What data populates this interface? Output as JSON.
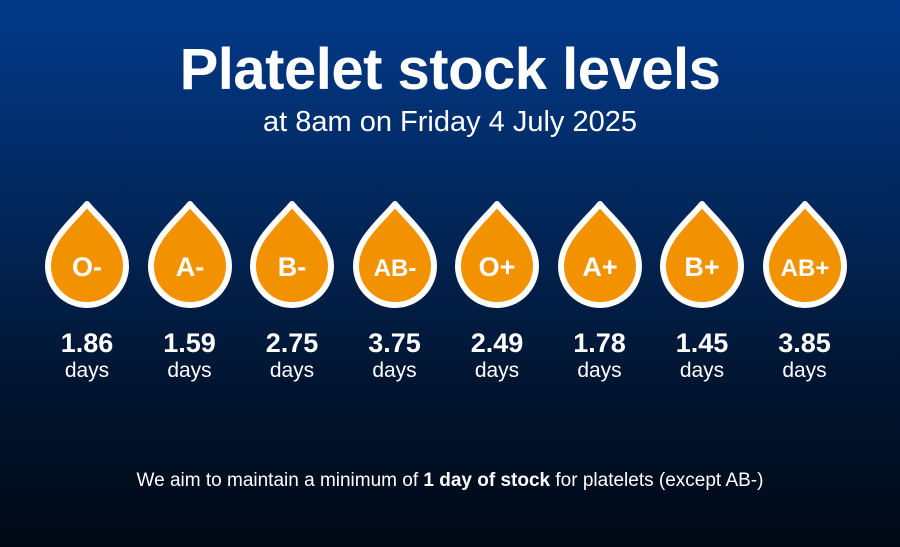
{
  "header": {
    "title": "Platelet stock levels",
    "subtitle": "at 8am on Friday 4 July 2025"
  },
  "colors": {
    "drop_fill": "#f39200",
    "drop_outline": "#ffffff",
    "background_top": "#023a8a",
    "background_bottom": "#000814"
  },
  "drops": [
    {
      "group": "O-",
      "value": "1.86",
      "unit": "days"
    },
    {
      "group": "A-",
      "value": "1.59",
      "unit": "days"
    },
    {
      "group": "B-",
      "value": "2.75",
      "unit": "days"
    },
    {
      "group": "AB-",
      "value": "3.75",
      "unit": "days"
    },
    {
      "group": "O+",
      "value": "2.49",
      "unit": "days"
    },
    {
      "group": "A+",
      "value": "1.78",
      "unit": "days"
    },
    {
      "group": "B+",
      "value": "1.45",
      "unit": "days"
    },
    {
      "group": "AB+",
      "value": "3.85",
      "unit": "days"
    }
  ],
  "footer": {
    "before": "We aim to maintain a minimum of ",
    "bold": "1 day of stock",
    "after": " for platelets (except AB-)"
  }
}
